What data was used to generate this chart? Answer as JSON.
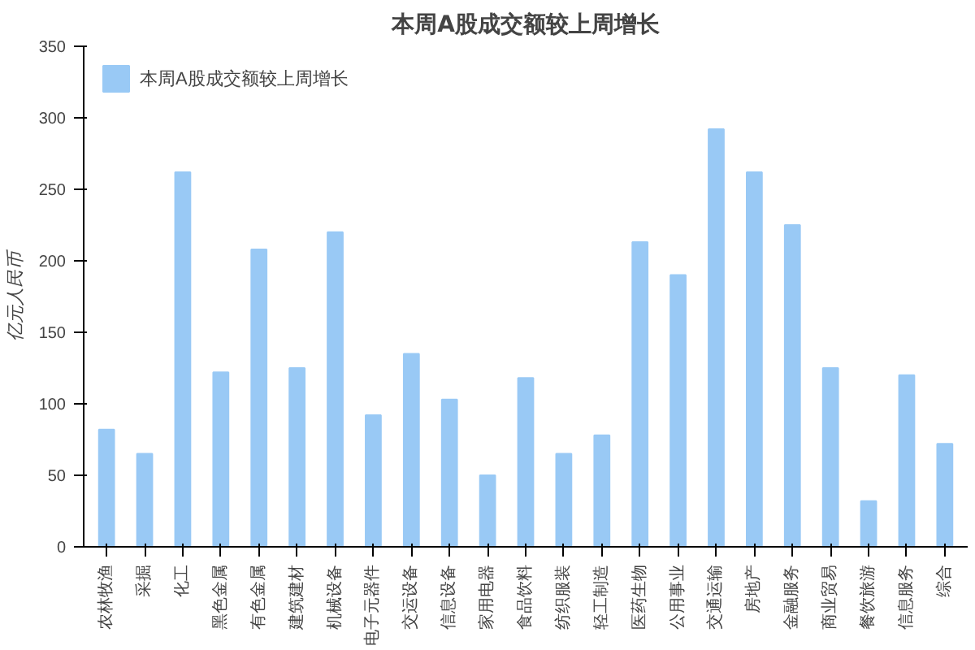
{
  "chart_data": {
    "type": "bar",
    "title": "本周A股成交额较上周增长",
    "ylabel": "亿元人民币",
    "categories": [
      "农林牧渔",
      "采掘",
      "化工",
      "黑色金属",
      "有色金属",
      "建筑建材",
      "机械设备",
      "电子元器件",
      "交运设备",
      "信息设备",
      "家用电器",
      "食品饮料",
      "纺织服装",
      "轻工制造",
      "医药生物",
      "公用事业",
      "交通运输",
      "房地产",
      "金融服务",
      "商业贸易",
      "餐饮旅游",
      "信息服务",
      "综合"
    ],
    "series": [
      {
        "name": "本周A股成交额较上周增长",
        "color": "#99c9f5",
        "values": [
          82,
          65,
          262,
          122,
          208,
          125,
          220,
          92,
          135,
          103,
          50,
          118,
          65,
          78,
          213,
          190,
          292,
          262,
          225,
          125,
          32,
          120,
          72
        ]
      }
    ],
    "ylim": [
      0,
      350
    ],
    "yticks": [
      0,
      50,
      100,
      150,
      200,
      250,
      300,
      350
    ],
    "grid": false,
    "legend": "top left"
  }
}
